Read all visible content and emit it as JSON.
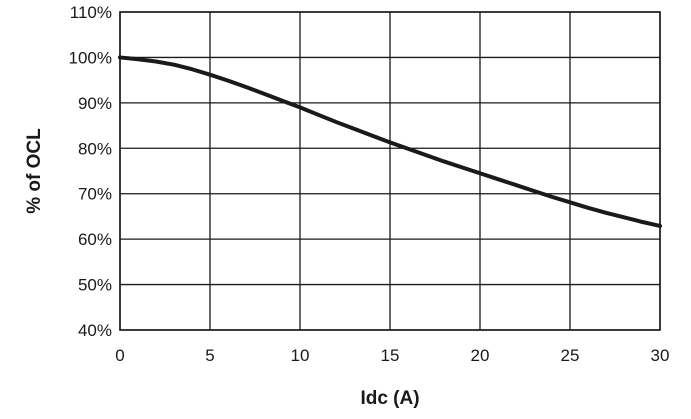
{
  "chart_data": {
    "type": "line",
    "xlabel": "Idc (A)",
    "ylabel": "% of OCL",
    "xlim": [
      0,
      30
    ],
    "ylim": [
      40,
      110
    ],
    "x_ticks": [
      "0",
      "5",
      "10",
      "15",
      "20",
      "25",
      "30"
    ],
    "y_ticks": [
      "40%",
      "50%",
      "60%",
      "70%",
      "80%",
      "90%",
      "100%",
      "110%"
    ],
    "grid": true,
    "series": [
      {
        "color": "#1a1a1a",
        "x": [
          0,
          1,
          2,
          3,
          4,
          5,
          6,
          7,
          8,
          9,
          10,
          11,
          12,
          13,
          14,
          15,
          16,
          17,
          18,
          19,
          20,
          21,
          22,
          23,
          24,
          25,
          26,
          27,
          28,
          29,
          30
        ],
        "y": [
          100,
          99.6,
          99.1,
          98.4,
          97.4,
          96.2,
          94.9,
          93.5,
          92.0,
          90.5,
          89.0,
          87.4,
          85.8,
          84.3,
          82.8,
          81.3,
          79.9,
          78.5,
          77.1,
          75.8,
          74.5,
          73.2,
          71.9,
          70.6,
          69.3,
          68.1,
          66.9,
          65.8,
          64.8,
          63.8,
          62.9
        ]
      }
    ]
  }
}
